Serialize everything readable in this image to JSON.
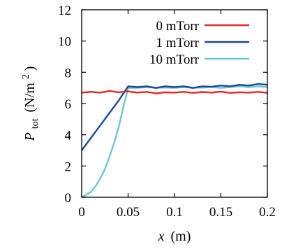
{
  "chart_data": {
    "type": "line",
    "xlabel_var": "x",
    "xlabel_unit": "(m)",
    "ylabel_var": "P",
    "ylabel_sub": "tot",
    "ylabel_unit": "(N/m",
    "ylabel_sup": "2",
    "ylabel_close": ")",
    "xlim": [
      0,
      0.2
    ],
    "ylim": [
      0,
      12
    ],
    "x_ticks": [
      0,
      0.05,
      0.1,
      0.15,
      0.2
    ],
    "x_tick_labels": [
      "0",
      "0.05",
      "0.1",
      "0.15",
      "0.2"
    ],
    "y_ticks": [
      0,
      2,
      4,
      6,
      8,
      10,
      12
    ],
    "y_tick_labels": [
      "0",
      "2",
      "4",
      "6",
      "8",
      "10",
      "12"
    ],
    "grid": false,
    "legend_position": "top-right",
    "series": [
      {
        "name": "0 mTorr",
        "color": "#e3292c",
        "x": [
          0,
          0.01,
          0.02,
          0.03,
          0.04,
          0.05,
          0.06,
          0.07,
          0.08,
          0.09,
          0.1,
          0.11,
          0.12,
          0.13,
          0.14,
          0.15,
          0.16,
          0.17,
          0.18,
          0.19,
          0.2
        ],
        "y": [
          6.7,
          6.75,
          6.7,
          6.8,
          6.72,
          6.78,
          6.7,
          6.75,
          6.65,
          6.72,
          6.7,
          6.75,
          6.68,
          6.74,
          6.7,
          6.76,
          6.68,
          6.72,
          6.7,
          6.75,
          6.68
        ]
      },
      {
        "name": "1 mTorr",
        "color": "#1a4a9c",
        "x": [
          0,
          0.01,
          0.02,
          0.03,
          0.04,
          0.05,
          0.06,
          0.07,
          0.08,
          0.09,
          0.1,
          0.11,
          0.12,
          0.13,
          0.14,
          0.15,
          0.16,
          0.17,
          0.18,
          0.19,
          0.2
        ],
        "y": [
          3.0,
          3.8,
          4.6,
          5.4,
          6.2,
          7.1,
          7.05,
          7.1,
          7.0,
          7.1,
          7.05,
          7.1,
          7.0,
          7.1,
          7.08,
          7.15,
          7.1,
          7.2,
          7.15,
          7.25,
          7.2
        ]
      },
      {
        "name": "10 mTorr",
        "color": "#6cc7d2",
        "x": [
          0,
          0.005,
          0.01,
          0.015,
          0.02,
          0.025,
          0.03,
          0.035,
          0.04,
          0.045,
          0.05,
          0.06,
          0.07,
          0.08,
          0.09,
          0.1,
          0.11,
          0.12,
          0.13,
          0.14,
          0.15,
          0.16,
          0.17,
          0.18,
          0.19,
          0.2
        ],
        "y": [
          0.0,
          0.15,
          0.35,
          0.7,
          1.2,
          1.8,
          2.6,
          3.5,
          4.5,
          5.8,
          7.0,
          7.0,
          7.05,
          7.0,
          7.02,
          7.0,
          7.05,
          7.0,
          7.02,
          7.05,
          7.0,
          7.05,
          7.1,
          7.05,
          7.1,
          7.05
        ]
      }
    ]
  }
}
